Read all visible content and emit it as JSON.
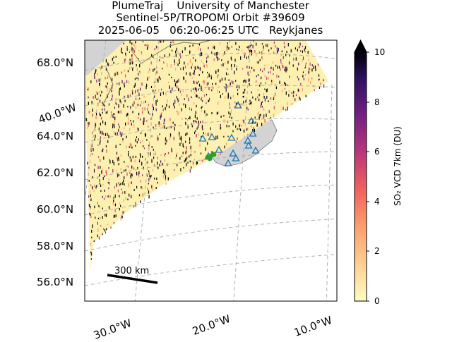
{
  "title": {
    "line1": "PlumeTraj    University of Manchester",
    "line2": "Sentinel-5P/TROPOMI Orbit #39609",
    "line3": "2025-06-05   06:20-06:25 UTC   Reykjanes"
  },
  "lat_labels": [
    "68.0°N",
    "64.0°N",
    "62.0°N",
    "60.0°N",
    "58.0°N",
    "56.0°N"
  ],
  "lon_labels": [
    "40.0°W",
    "30.0°W",
    "20.0°W",
    "10.0°W"
  ],
  "scale_bar": {
    "label": "300 km"
  },
  "colorbar": {
    "ticks": [
      "10",
      "8",
      "6",
      "4",
      "2",
      "0"
    ],
    "label": "SO₂ VCD 7km (DU)",
    "min": 0,
    "max": 10,
    "extend": "max",
    "colormap": "magma_r",
    "colors": [
      "#fcfdbf",
      "#fd9f6c",
      "#de4968",
      "#8c2981",
      "#3b0f70",
      "#000004"
    ]
  },
  "map": {
    "land_color": "#d3d3d3",
    "volcano_marker_color": "#1f77b4",
    "source_marker_color": "#2ca02c"
  }
}
